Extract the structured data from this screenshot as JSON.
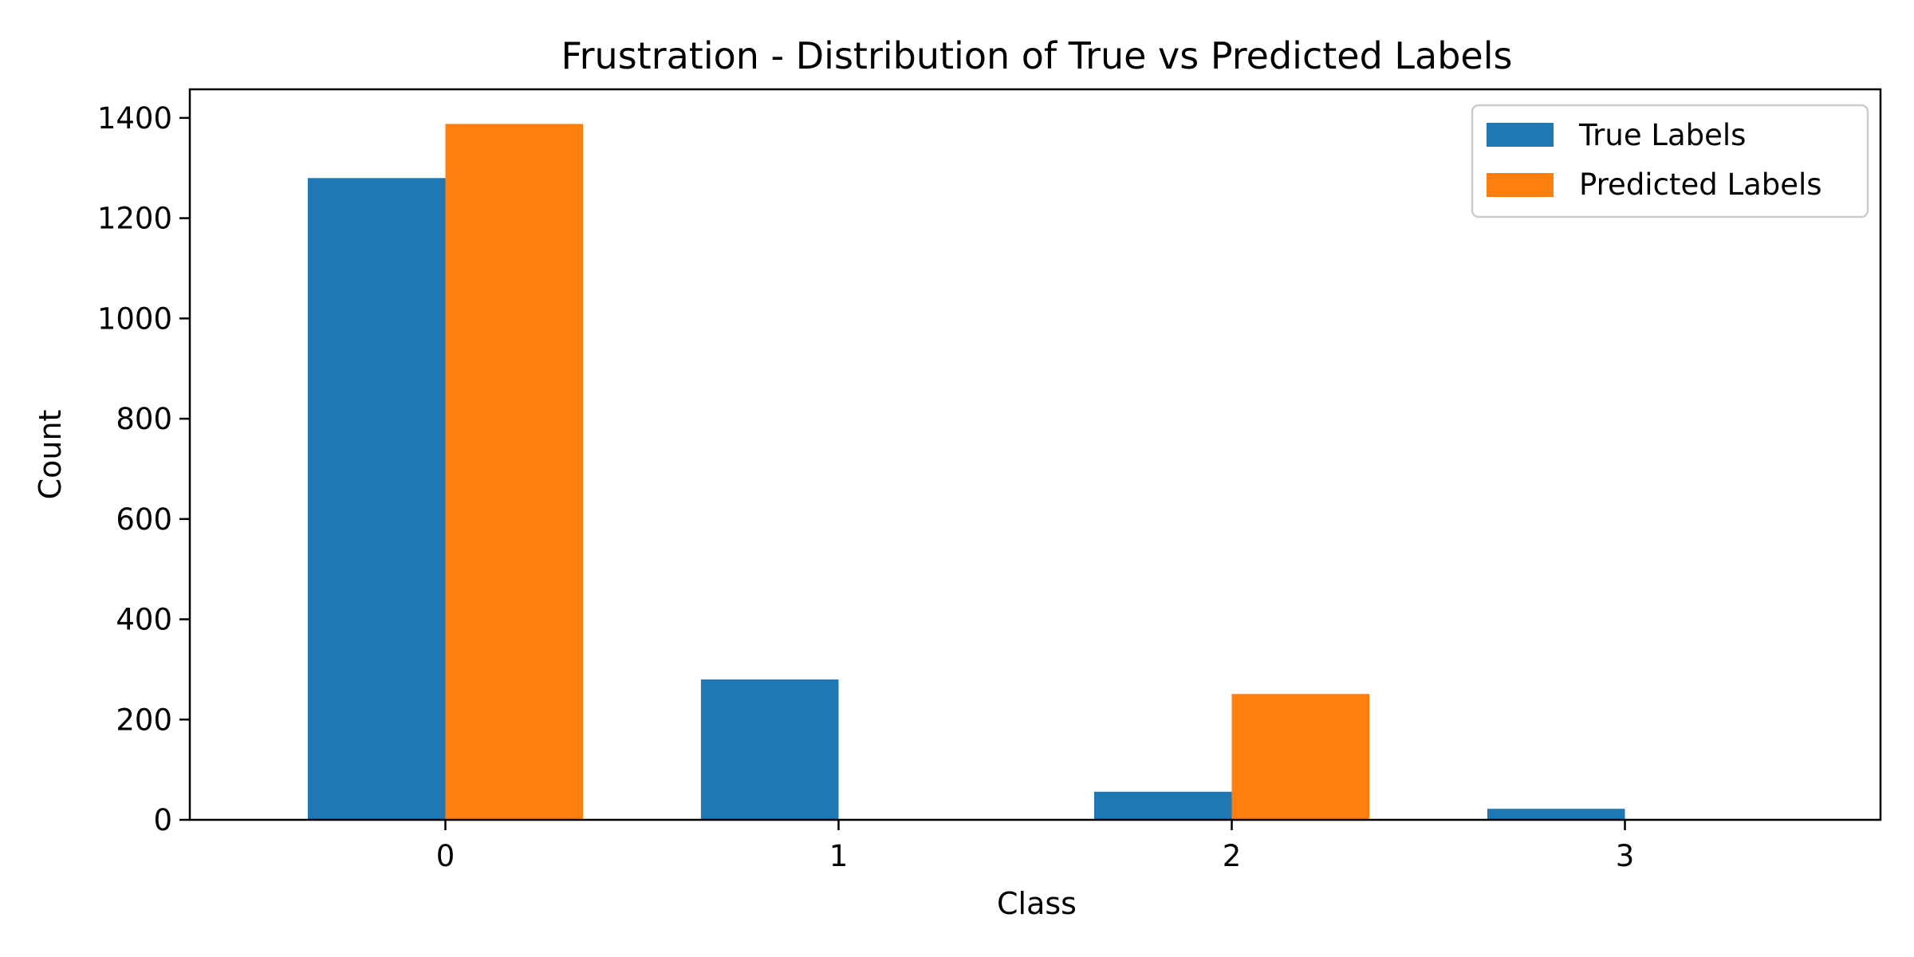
{
  "chart_data": {
    "type": "bar",
    "title": "Frustration - Distribution of True vs Predicted Labels",
    "xlabel": "Class",
    "ylabel": "Count",
    "categories": [
      "0",
      "1",
      "2",
      "3"
    ],
    "series": [
      {
        "name": "True Labels",
        "values": [
          1280,
          280,
          56,
          22
        ],
        "color": "#1f77b4"
      },
      {
        "name": "Predicted Labels",
        "values": [
          1388,
          0,
          251,
          0
        ],
        "color": "#ff7f0e"
      }
    ],
    "ylim": [
      0,
      1457
    ],
    "yticks": [
      0,
      200,
      400,
      600,
      800,
      1000,
      1200,
      1400
    ],
    "grid": false,
    "legend_position": "top-right"
  }
}
